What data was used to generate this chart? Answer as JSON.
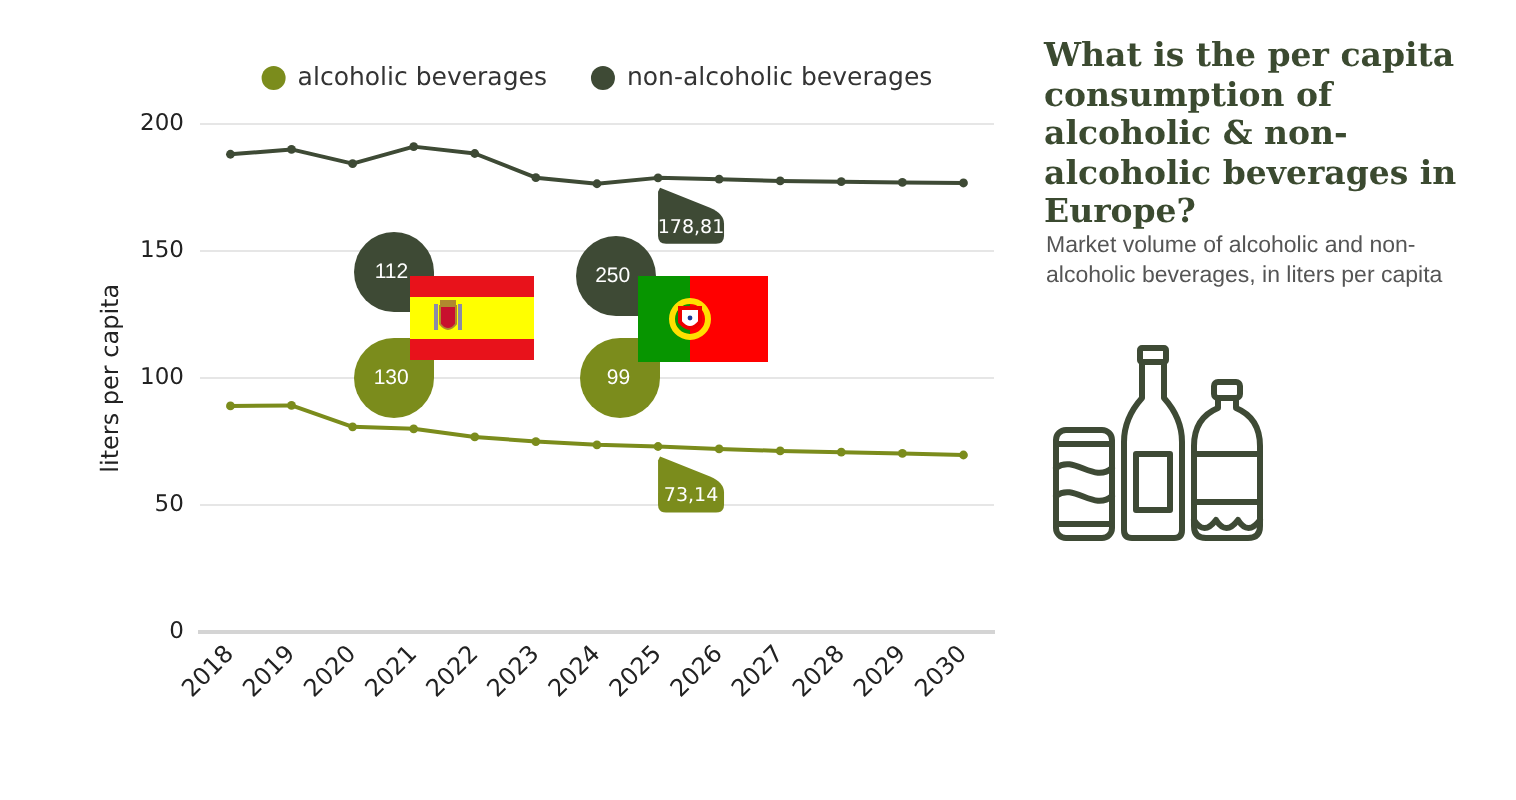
{
  "chart_data": {
    "type": "line",
    "title": "What is the per capita consumption of alcoholic & non-alcoholic beverages in Europe?",
    "subtitle": "Market volume of alcoholic and non-alcoholic beverages, in liters per capita",
    "ylabel": "liters per capita",
    "categories": [
      "2018",
      "2019",
      "2020",
      "2021",
      "2022",
      "2023",
      "2024",
      "2025",
      "2026",
      "2027",
      "2028",
      "2029",
      "2030"
    ],
    "series": [
      {
        "name": "alcoholic beverages",
        "color": "#7b8c1c",
        "values": [
          89.1,
          89.3,
          80.9,
          80.1,
          76.9,
          75.1,
          73.8,
          73.14,
          72.2,
          71.4,
          70.9,
          70.4,
          69.8
        ],
        "value_labels": [
          null,
          null,
          null,
          null,
          null,
          null,
          null,
          "73,14",
          null,
          null,
          null,
          null,
          null
        ]
      },
      {
        "name": "non-alcoholic beverages",
        "color": "#3e4a35",
        "values": [
          188.1,
          190.0,
          184.4,
          191.1,
          188.4,
          178.9,
          176.5,
          178.81,
          178.3,
          177.6,
          177.3,
          177.0,
          176.8
        ],
        "value_labels": [
          null,
          null,
          null,
          null,
          null,
          null,
          null,
          "178,81",
          null,
          null,
          null,
          null,
          null
        ]
      }
    ],
    "ylim": [
      0,
      200
    ],
    "yticks": [
      0,
      50,
      100,
      150,
      200
    ],
    "grid": "y",
    "legend": "top",
    "marker": "circle",
    "annotations": [
      "112",
      "130",
      "250",
      "99"
    ]
  }
}
